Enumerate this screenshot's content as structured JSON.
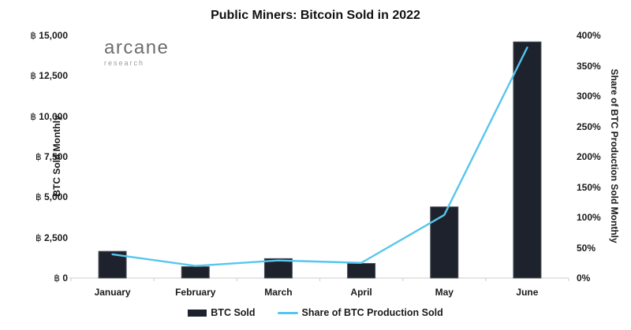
{
  "title": "Public Miners: Bitcoin Sold in 2022",
  "logo": {
    "name": "arcane",
    "subtitle": "research"
  },
  "colors": {
    "bar": "#1d222c",
    "bar_border": "#4a4f58",
    "line": "#57c6ee",
    "axis_line": "#d8d8d8",
    "text": "#1a1a1a"
  },
  "left_axis": {
    "title": "BTC Sold Monthly",
    "unit": "฿",
    "tick_values": [
      0,
      2500,
      5000,
      7500,
      10000,
      12500,
      15000
    ],
    "tick_labels": [
      "฿ 0",
      "฿ 2,500",
      "฿ 5,000",
      "฿ 7,500",
      "฿ 10,000",
      "฿ 12,500",
      "฿ 15,000"
    ],
    "max": 15000
  },
  "right_axis": {
    "title": "Share of BTC Production Sold Monthly",
    "tick_values": [
      0,
      50,
      100,
      150,
      200,
      250,
      300,
      350,
      400
    ],
    "tick_labels": [
      "0%",
      "50%",
      "100%",
      "150%",
      "200%",
      "250%",
      "300%",
      "350%",
      "400%"
    ],
    "max": 400
  },
  "legend": {
    "items": [
      {
        "label": "BTC Sold",
        "marker": "bar-swatch",
        "color": "#1d222c"
      },
      {
        "label": "Share of BTC Production Sold",
        "marker": "line-swatch",
        "color": "#57c6ee"
      }
    ]
  },
  "chart_data": {
    "type": "bar+line",
    "categories": [
      "January",
      "February",
      "March",
      "April",
      "May",
      "June"
    ],
    "series": [
      {
        "name": "BTC Sold",
        "type": "bar",
        "axis": "left",
        "unit": "BTC",
        "values": [
          1650,
          700,
          1200,
          900,
          4400,
          14600
        ]
      },
      {
        "name": "Share of BTC Production Sold",
        "type": "line",
        "axis": "right",
        "unit": "%",
        "values": [
          39,
          20,
          29,
          25,
          104,
          380
        ]
      }
    ],
    "left_ylim": [
      0,
      15000
    ],
    "right_ylim": [
      0,
      400
    ],
    "grid": false,
    "legend_position": "bottom"
  }
}
